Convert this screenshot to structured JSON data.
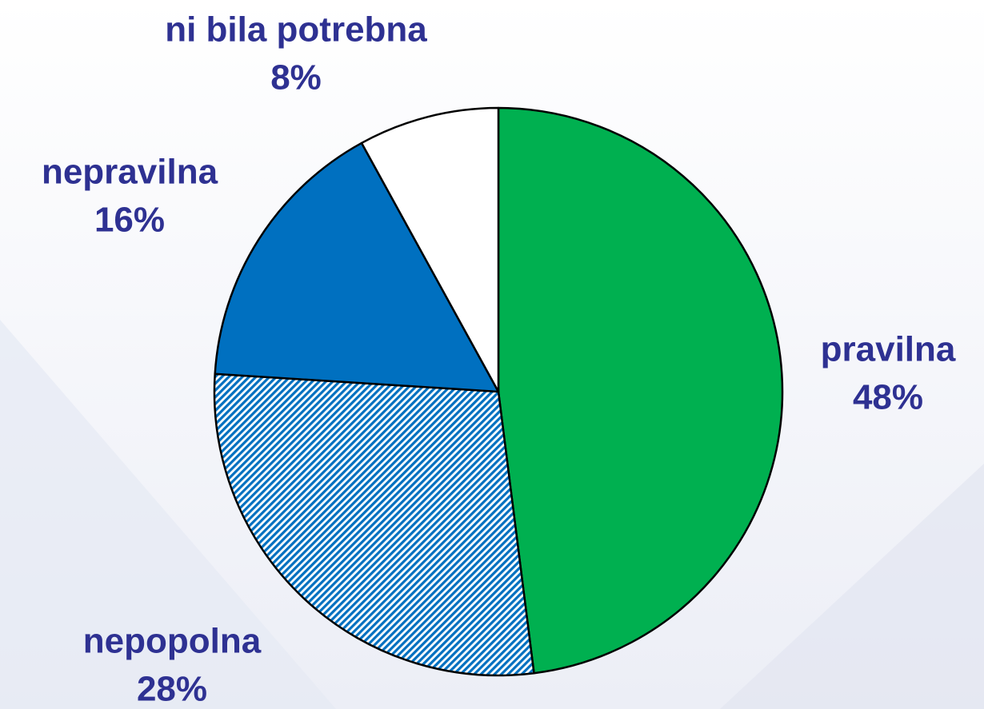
{
  "chart_data": {
    "type": "pie",
    "categories": [
      "pravilna",
      "nepopolna",
      "nepravilna",
      "ni bila potrebna"
    ],
    "values": [
      48,
      28,
      16,
      8
    ],
    "value_labels": [
      "48%",
      "28%",
      "16%",
      "8%"
    ],
    "colors": [
      "#00b050",
      "#0070c0",
      "#0070c0",
      "#ffffff"
    ],
    "hatch": [
      false,
      true,
      false,
      false
    ]
  }
}
